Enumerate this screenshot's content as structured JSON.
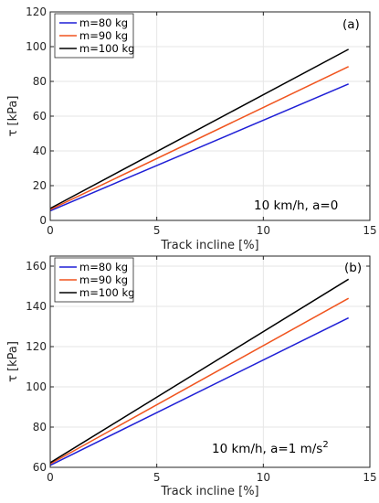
{
  "chart_data": [
    {
      "type": "line",
      "panel_label": "(a)",
      "annotation": "10 km/h, a=0",
      "xlabel": "Track incline [%]",
      "ylabel": "τ [kPa]",
      "xlim": [
        0,
        15
      ],
      "ylim": [
        0,
        120
      ],
      "xticks": [
        0,
        5,
        10,
        15
      ],
      "yticks": [
        0,
        20,
        40,
        60,
        80,
        100,
        120
      ],
      "grid": true,
      "legend": "top-left",
      "series": [
        {
          "name": "m=80 kg",
          "color": "#1f1fd6",
          "x": [
            0,
            14
          ],
          "y": [
            5.5,
            78.5
          ]
        },
        {
          "name": "m=90 kg",
          "color": "#f0541e",
          "x": [
            0,
            14
          ],
          "y": [
            6.2,
            88.5
          ]
        },
        {
          "name": "m=100 kg",
          "color": "#000000",
          "x": [
            0,
            14
          ],
          "y": [
            6.9,
            98.5
          ]
        }
      ]
    },
    {
      "type": "line",
      "panel_label": "(b)",
      "annotation": "10 km/h, a=1 m/s",
      "annotation_sup": "2",
      "xlabel": "Track incline [%]",
      "ylabel": "τ [kPa]",
      "xlim": [
        0,
        15
      ],
      "ylim": [
        60,
        165
      ],
      "xticks": [
        0,
        5,
        10,
        15
      ],
      "yticks": [
        60,
        80,
        100,
        120,
        140,
        160
      ],
      "grid": true,
      "legend": "top-left",
      "series": [
        {
          "name": "m=80 kg",
          "color": "#1f1fd6",
          "x": [
            0,
            14
          ],
          "y": [
            61.0,
            134.3
          ]
        },
        {
          "name": "m=90 kg",
          "color": "#f0541e",
          "x": [
            0,
            14
          ],
          "y": [
            61.7,
            144.0
          ]
        },
        {
          "name": "m=100 kg",
          "color": "#000000",
          "x": [
            0,
            14
          ],
          "y": [
            62.3,
            153.5
          ]
        }
      ]
    }
  ]
}
